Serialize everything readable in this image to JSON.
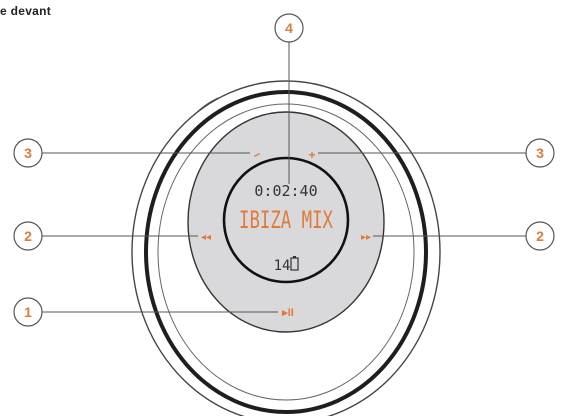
{
  "header": {
    "title": "e devant"
  },
  "display": {
    "time": "0:02:40",
    "track_title": "IBIZA MIX",
    "track_number": "14"
  },
  "controls": {
    "volume_down": "−",
    "volume_up": "+",
    "previous": "◂◂",
    "next": "▸▸",
    "play_pause": "▸II"
  },
  "callouts": {
    "play_pause": "1",
    "skip_left": "2",
    "skip_right": "2",
    "volume_left": "3",
    "volume_right": "3",
    "display": "4"
  },
  "colors": {
    "accent": "#e07a3a",
    "face_fill": "#d9d9db",
    "outline": "#2b2b2b",
    "line": "#555555"
  }
}
